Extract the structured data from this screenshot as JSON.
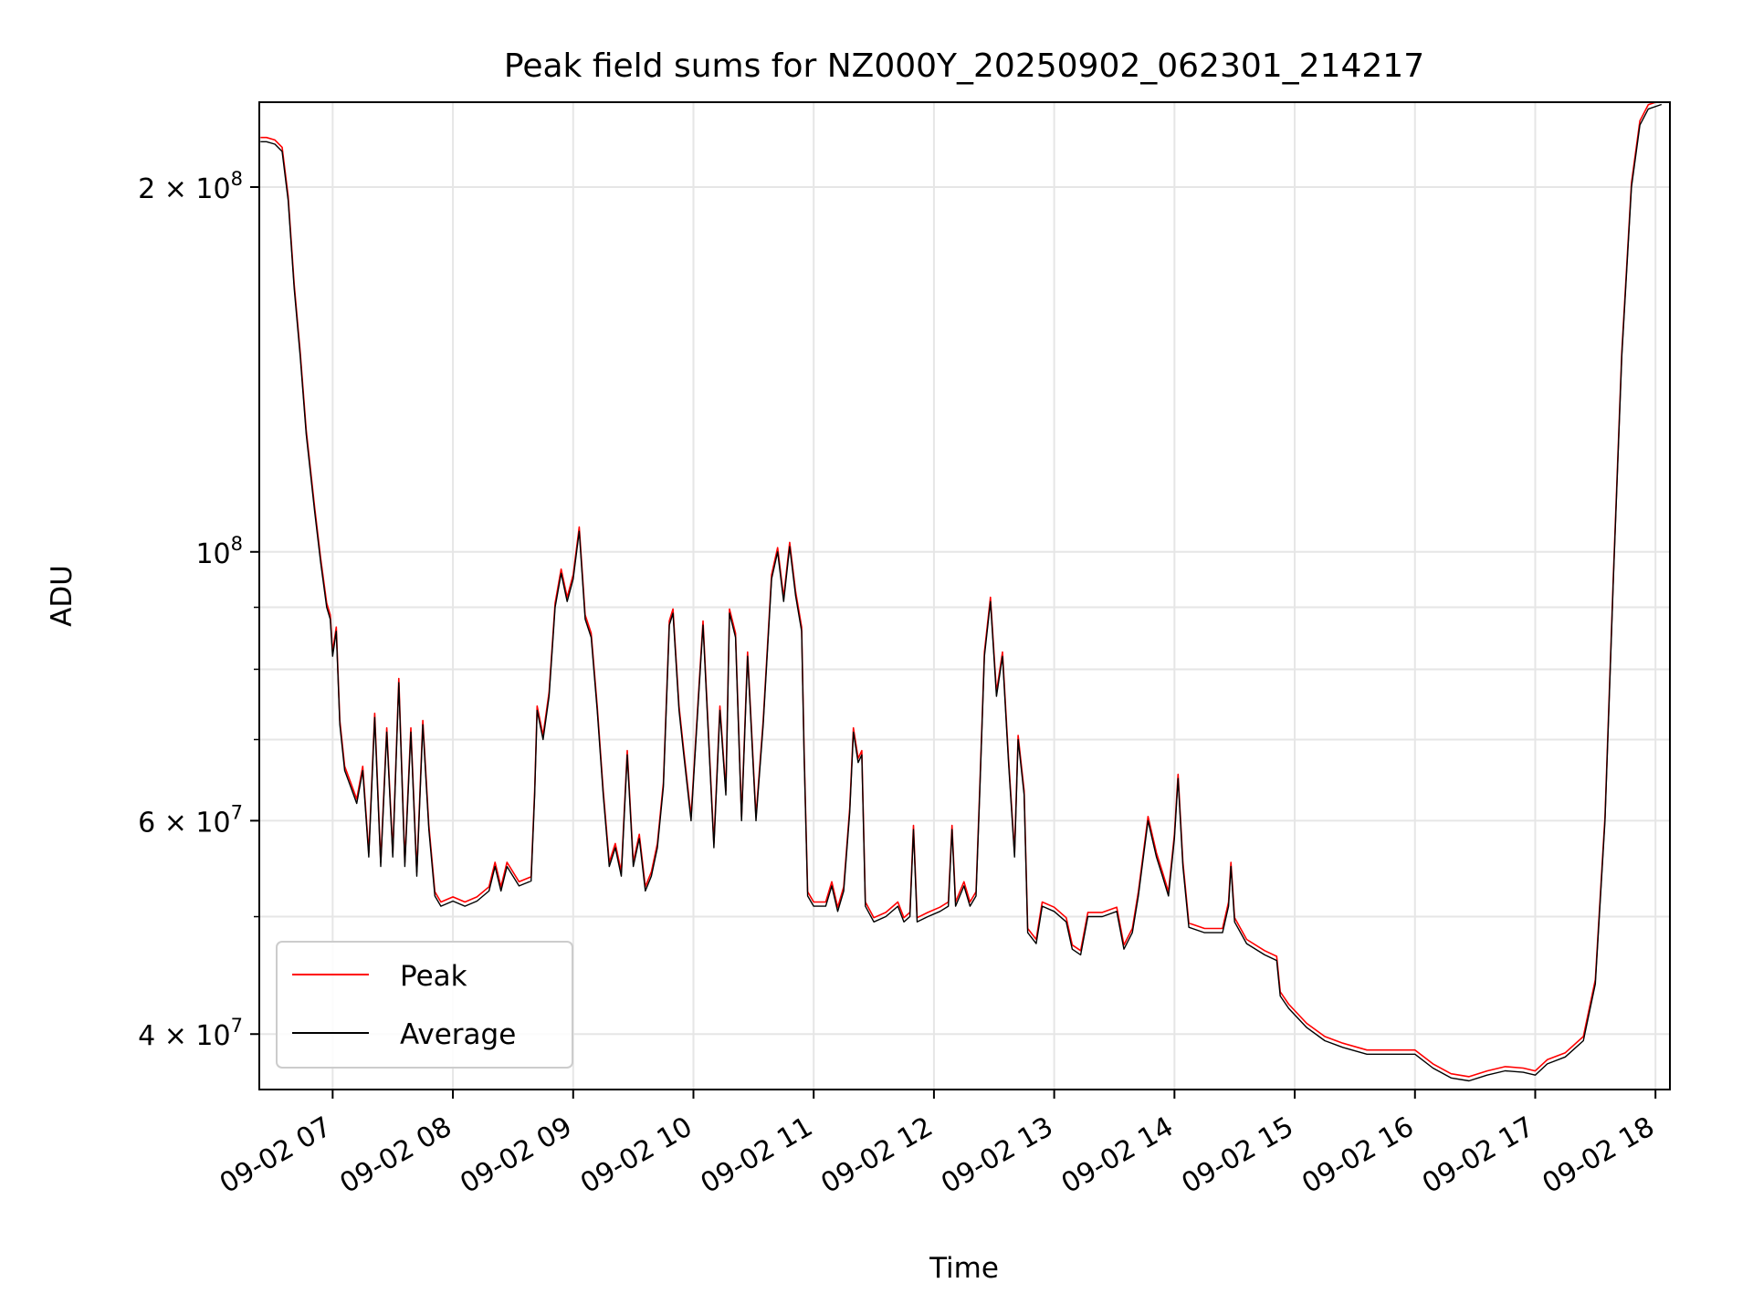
{
  "chart_data": {
    "type": "line",
    "title": "Peak field sums for NZ000Y_20250902_062301_214217",
    "xlabel": "Time",
    "ylabel": "ADU",
    "x_unit": "hour of 09-02",
    "xlim": [
      6.39,
      18.12
    ],
    "ylim": [
      36000000,
      235000000
    ],
    "yscale": "log",
    "grid": true,
    "legend_position": "lower left",
    "x_ticks": [
      {
        "value": 7,
        "label": "09-02 07"
      },
      {
        "value": 8,
        "label": "09-02 08"
      },
      {
        "value": 9,
        "label": "09-02 09"
      },
      {
        "value": 10,
        "label": "09-02 10"
      },
      {
        "value": 11,
        "label": "09-02 11"
      },
      {
        "value": 12,
        "label": "09-02 12"
      },
      {
        "value": 13,
        "label": "09-02 13"
      },
      {
        "value": 14,
        "label": "09-02 14"
      },
      {
        "value": 15,
        "label": "09-02 15"
      },
      {
        "value": 16,
        "label": "09-02 16"
      },
      {
        "value": 17,
        "label": "09-02 17"
      },
      {
        "value": 18,
        "label": "09-02 18"
      }
    ],
    "y_ticks": [
      {
        "value": 40000000,
        "label": "4 × 10",
        "exp": "7"
      },
      {
        "value": 60000000,
        "label": "6 × 10",
        "exp": "7"
      },
      {
        "value": 100000000,
        "label": "10",
        "exp": "8"
      },
      {
        "value": 200000000,
        "label": "2 × 10",
        "exp": "8"
      }
    ],
    "y_minor_ticks": [
      50000000,
      70000000,
      80000000,
      90000000
    ],
    "series": [
      {
        "name": "Peak",
        "color": "#ff0000",
        "values_key": "peak"
      },
      {
        "name": "Average",
        "color": "#000000",
        "values_key": "average"
      }
    ],
    "points": [
      [
        6.4,
        218000000
      ],
      [
        6.45,
        218000000
      ],
      [
        6.52,
        217000000
      ],
      [
        6.58,
        214000000
      ],
      [
        6.63,
        195000000
      ],
      [
        6.68,
        165000000
      ],
      [
        6.73,
        145000000
      ],
      [
        6.78,
        125000000
      ],
      [
        6.85,
        108000000
      ],
      [
        6.9,
        98000000
      ],
      [
        6.95,
        90000000
      ],
      [
        6.98,
        88000000
      ],
      [
        7.0,
        82000000
      ],
      [
        7.03,
        86000000
      ],
      [
        7.06,
        72000000
      ],
      [
        7.1,
        66000000
      ],
      [
        7.15,
        64000000
      ],
      [
        7.2,
        62000000
      ],
      [
        7.25,
        66000000
      ],
      [
        7.3,
        56000000
      ],
      [
        7.35,
        73000000
      ],
      [
        7.4,
        55000000
      ],
      [
        7.45,
        71000000
      ],
      [
        7.5,
        56000000
      ],
      [
        7.55,
        78000000
      ],
      [
        7.6,
        55000000
      ],
      [
        7.65,
        71000000
      ],
      [
        7.7,
        54000000
      ],
      [
        7.75,
        72000000
      ],
      [
        7.8,
        59000000
      ],
      [
        7.85,
        52000000
      ],
      [
        7.9,
        51000000
      ],
      [
        8.0,
        51500000
      ],
      [
        8.1,
        51000000
      ],
      [
        8.2,
        51500000
      ],
      [
        8.3,
        52500000
      ],
      [
        8.35,
        55000000
      ],
      [
        8.4,
        52500000
      ],
      [
        8.45,
        55000000
      ],
      [
        8.55,
        53000000
      ],
      [
        8.65,
        53500000
      ],
      [
        8.68,
        63000000
      ],
      [
        8.7,
        74000000
      ],
      [
        8.75,
        70000000
      ],
      [
        8.8,
        76000000
      ],
      [
        8.85,
        90000000
      ],
      [
        8.9,
        96000000
      ],
      [
        8.95,
        91000000
      ],
      [
        9.0,
        95000000
      ],
      [
        9.05,
        104000000
      ],
      [
        9.1,
        88000000
      ],
      [
        9.15,
        85000000
      ],
      [
        9.2,
        74000000
      ],
      [
        9.25,
        63000000
      ],
      [
        9.3,
        55000000
      ],
      [
        9.35,
        57000000
      ],
      [
        9.4,
        54000000
      ],
      [
        9.45,
        68000000
      ],
      [
        9.5,
        55000000
      ],
      [
        9.55,
        58000000
      ],
      [
        9.6,
        52500000
      ],
      [
        9.65,
        54000000
      ],
      [
        9.7,
        57000000
      ],
      [
        9.75,
        64000000
      ],
      [
        9.8,
        87000000
      ],
      [
        9.83,
        89000000
      ],
      [
        9.88,
        74000000
      ],
      [
        9.92,
        68000000
      ],
      [
        9.98,
        60000000
      ],
      [
        10.05,
        78000000
      ],
      [
        10.08,
        87000000
      ],
      [
        10.12,
        72000000
      ],
      [
        10.17,
        57000000
      ],
      [
        10.22,
        74000000
      ],
      [
        10.27,
        63000000
      ],
      [
        10.3,
        89000000
      ],
      [
        10.35,
        85000000
      ],
      [
        10.4,
        60000000
      ],
      [
        10.45,
        82000000
      ],
      [
        10.52,
        60000000
      ],
      [
        10.58,
        72000000
      ],
      [
        10.65,
        95000000
      ],
      [
        10.7,
        100000000
      ],
      [
        10.75,
        91000000
      ],
      [
        10.8,
        101000000
      ],
      [
        10.85,
        92000000
      ],
      [
        10.9,
        86000000
      ],
      [
        10.92,
        68000000
      ],
      [
        10.95,
        52000000
      ],
      [
        11.0,
        51000000
      ],
      [
        11.1,
        51000000
      ],
      [
        11.15,
        53000000
      ],
      [
        11.2,
        50500000
      ],
      [
        11.25,
        52500000
      ],
      [
        11.3,
        61000000
      ],
      [
        11.33,
        71000000
      ],
      [
        11.37,
        67000000
      ],
      [
        11.4,
        68000000
      ],
      [
        11.43,
        51000000
      ],
      [
        11.5,
        49500000
      ],
      [
        11.6,
        50000000
      ],
      [
        11.7,
        51000000
      ],
      [
        11.75,
        49500000
      ],
      [
        11.8,
        50000000
      ],
      [
        11.83,
        59000000
      ],
      [
        11.86,
        49500000
      ],
      [
        11.95,
        50000000
      ],
      [
        12.05,
        50500000
      ],
      [
        12.12,
        51000000
      ],
      [
        12.15,
        59000000
      ],
      [
        12.18,
        51000000
      ],
      [
        12.25,
        53000000
      ],
      [
        12.3,
        51000000
      ],
      [
        12.35,
        52000000
      ],
      [
        12.38,
        63000000
      ],
      [
        12.42,
        82000000
      ],
      [
        12.47,
        91000000
      ],
      [
        12.52,
        76000000
      ],
      [
        12.57,
        82000000
      ],
      [
        12.62,
        67000000
      ],
      [
        12.67,
        56000000
      ],
      [
        12.7,
        70000000
      ],
      [
        12.75,
        63000000
      ],
      [
        12.78,
        48500000
      ],
      [
        12.85,
        47500000
      ],
      [
        12.9,
        51000000
      ],
      [
        13.0,
        50500000
      ],
      [
        13.1,
        49500000
      ],
      [
        13.15,
        47000000
      ],
      [
        13.22,
        46500000
      ],
      [
        13.28,
        50000000
      ],
      [
        13.4,
        50000000
      ],
      [
        13.52,
        50500000
      ],
      [
        13.58,
        47000000
      ],
      [
        13.65,
        48500000
      ],
      [
        13.7,
        52000000
      ],
      [
        13.78,
        60000000
      ],
      [
        13.85,
        56000000
      ],
      [
        13.9,
        54000000
      ],
      [
        13.95,
        52000000
      ],
      [
        14.0,
        58000000
      ],
      [
        14.03,
        65000000
      ],
      [
        14.07,
        55000000
      ],
      [
        14.12,
        49000000
      ],
      [
        14.25,
        48500000
      ],
      [
        14.4,
        48500000
      ],
      [
        14.45,
        51000000
      ],
      [
        14.47,
        55000000
      ],
      [
        14.5,
        49500000
      ],
      [
        14.6,
        47500000
      ],
      [
        14.75,
        46500000
      ],
      [
        14.85,
        46000000
      ],
      [
        14.88,
        43000000
      ],
      [
        14.95,
        42000000
      ],
      [
        15.1,
        40500000
      ],
      [
        15.25,
        39500000
      ],
      [
        15.4,
        39000000
      ],
      [
        15.6,
        38500000
      ],
      [
        15.8,
        38500000
      ],
      [
        16.0,
        38500000
      ],
      [
        16.15,
        37500000
      ],
      [
        16.3,
        36800000
      ],
      [
        16.45,
        36600000
      ],
      [
        16.6,
        37000000
      ],
      [
        16.75,
        37300000
      ],
      [
        16.9,
        37200000
      ],
      [
        17.0,
        37000000
      ],
      [
        17.1,
        37800000
      ],
      [
        17.25,
        38300000
      ],
      [
        17.4,
        39500000
      ],
      [
        17.5,
        44000000
      ],
      [
        17.58,
        60000000
      ],
      [
        17.65,
        95000000
      ],
      [
        17.72,
        145000000
      ],
      [
        17.8,
        200000000
      ],
      [
        17.87,
        225000000
      ],
      [
        17.94,
        232000000
      ],
      [
        18.05,
        234000000
      ]
    ],
    "legend": {
      "peak_label": "Peak",
      "average_label": "Average"
    }
  }
}
